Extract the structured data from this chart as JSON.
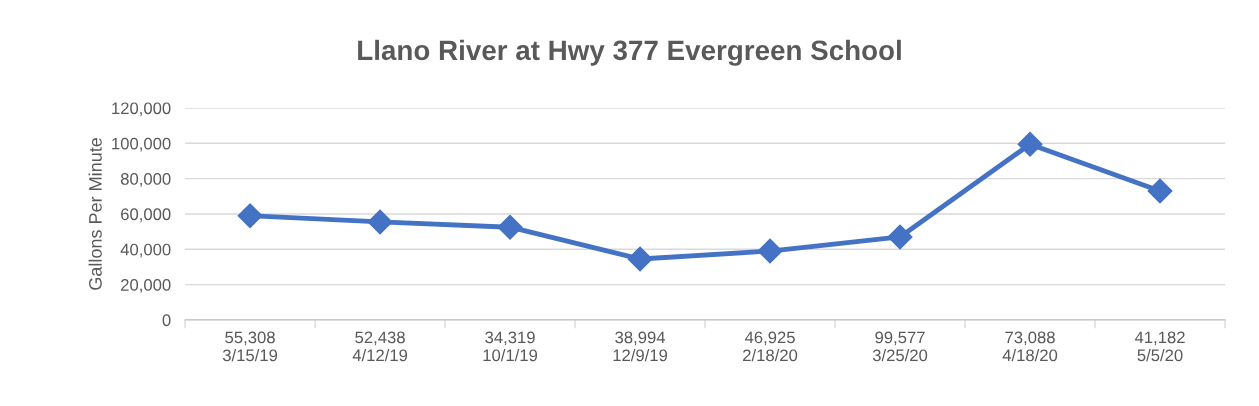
{
  "chart_data": {
    "type": "line",
    "title": "Llano River at Hwy 377 Evergreen School",
    "ylabel": "Gallons Per Minute",
    "categories": [
      "55,308\n3/15/19",
      "52,438\n4/12/19",
      "34,319\n10/1/19",
      "38,994\n12/9/19",
      "46,925\n2/18/20",
      "99,577\n3/25/20",
      "73,088\n4/18/20",
      "41,182\n5/5/20"
    ],
    "series": [
      {
        "color": "#4472c4",
        "values": [
          59000,
          55500,
          52500,
          34500,
          39000,
          47000,
          99500,
          73000
        ]
      }
    ],
    "ylim": [
      0,
      120000
    ],
    "yticks": [
      0,
      {
        "value": 20000,
        "label": "20,000"
      },
      {
        "value": 40000,
        "label": "40,000"
      },
      {
        "value": 60000,
        "label": "60,000"
      },
      {
        "value": 80000,
        "label": "80,000"
      },
      {
        "value": 100000,
        "label": "100,000"
      },
      {
        "value": 120000,
        "label": "120,000"
      }
    ],
    "grid": "y",
    "marker": "diamond",
    "line_style": "solid",
    "legend": false
  }
}
